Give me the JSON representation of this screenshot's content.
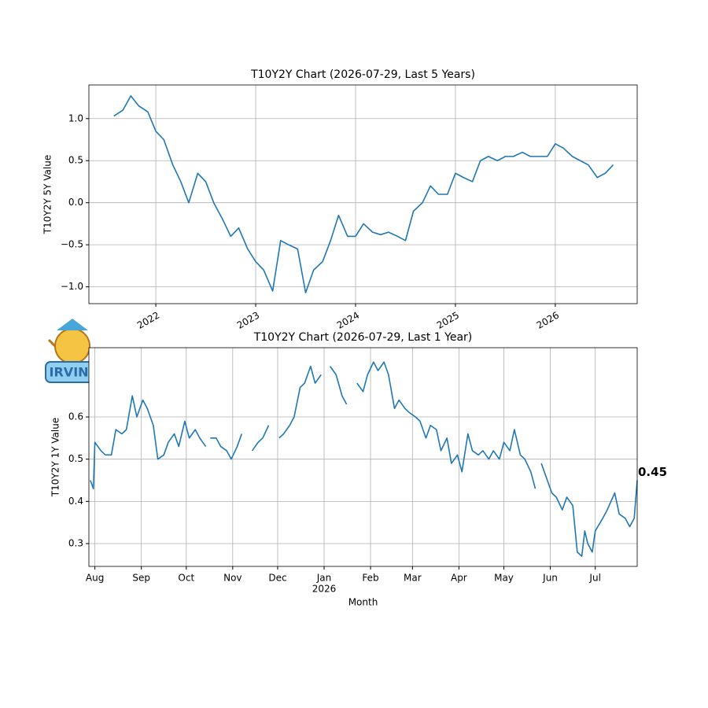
{
  "logo_text": "IRVINE",
  "chart_data": [
    {
      "type": "line",
      "title": "T10Y2Y Chart (2026-07-29, Last 5 Years)",
      "ylabel": "T10Y2Y 5Y Value",
      "color": "#1f77b4",
      "grid": true,
      "xlim": [
        2021.33,
        2026.82
      ],
      "xticks": [
        2022,
        2023,
        2024,
        2025,
        2026
      ],
      "ylim": [
        -1.2,
        1.4
      ],
      "yticks": [
        {
          "value": -1,
          "label": "−1.0"
        },
        {
          "value": -0.5,
          "label": "−0.5"
        },
        {
          "value": 0,
          "label": "0.0"
        },
        0.5,
        {
          "value": 1,
          "label": "1.0"
        }
      ],
      "x": [
        2021.58,
        2021.67,
        2021.75,
        2021.83,
        2021.92,
        2022.0,
        2022.08,
        2022.17,
        2022.25,
        2022.33,
        2022.42,
        2022.5,
        2022.58,
        2022.67,
        2022.75,
        2022.83,
        2022.92,
        2023.0,
        2023.08,
        2023.17,
        2023.25,
        2023.33,
        2023.42,
        2023.5,
        2023.58,
        2023.67,
        2023.75,
        2023.83,
        2023.92,
        2024.0,
        2024.08,
        2024.17,
        2024.25,
        2024.33,
        2024.42,
        2024.5,
        2024.58,
        2024.67,
        2024.75,
        2024.83,
        2024.92,
        2025.0,
        2025.08,
        2025.17,
        2025.25,
        2025.33,
        2025.42,
        2025.5,
        2025.58,
        2025.67,
        2025.75,
        2025.83,
        2025.92,
        2026.0,
        2026.08,
        2026.17,
        2026.25,
        2026.33,
        2026.42,
        2026.5,
        2026.58
      ],
      "values": [
        1.03,
        1.1,
        1.27,
        1.15,
        1.08,
        0.85,
        0.75,
        0.45,
        0.25,
        0.0,
        0.35,
        0.25,
        0.0,
        -0.2,
        -0.4,
        -0.3,
        -0.55,
        -0.7,
        -0.8,
        -1.05,
        -0.45,
        -0.5,
        -0.55,
        -1.07,
        -0.8,
        -0.7,
        -0.45,
        -0.15,
        -0.4,
        -0.4,
        -0.25,
        -0.35,
        -0.38,
        -0.35,
        -0.4,
        -0.45,
        -0.1,
        0.0,
        0.2,
        0.1,
        0.1,
        0.35,
        0.3,
        0.25,
        0.5,
        0.55,
        0.5,
        0.55,
        0.55,
        0.6,
        0.55,
        0.55,
        0.55,
        0.7,
        0.65,
        0.55,
        0.5,
        0.45,
        0.3,
        0.35,
        0.45
      ]
    },
    {
      "type": "line",
      "title": "T10Y2Y Chart (2026-07-29, Last 1 Year)",
      "ylabel": "T10Y2Y 1Y Value",
      "xlabel": "Month",
      "color": "#1f77b4",
      "grid": true,
      "annotation": "0.45",
      "xlim": [
        "2025-07-28",
        "2026-07-29"
      ],
      "xticks": [
        {
          "value": "2025-08-01",
          "label": "Aug"
        },
        {
          "value": "2025-09-01",
          "label": "Sep"
        },
        {
          "value": "2025-10-01",
          "label": "Oct"
        },
        {
          "value": "2025-11-01",
          "label": "Nov"
        },
        {
          "value": "2025-12-01",
          "label": "Dec"
        },
        {
          "value": "2026-01-01",
          "label": "Jan",
          "sublabel": "2026"
        },
        {
          "value": "2026-02-01",
          "label": "Feb"
        },
        {
          "value": "2026-03-01",
          "label": "Mar"
        },
        {
          "value": "2026-04-01",
          "label": "Apr"
        },
        {
          "value": "2026-05-01",
          "label": "May"
        },
        {
          "value": "2026-06-01",
          "label": "Jun"
        },
        {
          "value": "2026-07-01",
          "label": "Jul"
        }
      ],
      "ylim": [
        0.246,
        0.764
      ],
      "yticks": [
        0.3,
        0.4,
        0.5,
        0.6
      ],
      "x": [
        "2025-07-29",
        "2025-07-31",
        "2025-08-01",
        "2025-08-05",
        "2025-08-08",
        "2025-08-12",
        "2025-08-15",
        "2025-08-19",
        "2025-08-22",
        "2025-08-26",
        "2025-08-29",
        "2025-09-02",
        "2025-09-05",
        "2025-09-09",
        "2025-09-12",
        "2025-09-16",
        "2025-09-19",
        "2025-09-23",
        "2025-09-26",
        "2025-09-30",
        "2025-10-03",
        "2025-10-07",
        "2025-10-10",
        "2025-10-14",
        "2025-10-16",
        "2025-10-17",
        "2025-10-21",
        "2025-10-24",
        "2025-10-28",
        "2025-10-31",
        "2025-11-04",
        "2025-11-07",
        "2025-11-11",
        "2025-11-14",
        "2025-11-18",
        "2025-11-21",
        "2025-11-25",
        "2025-11-27",
        "2025-12-02",
        "2025-12-05",
        "2025-12-09",
        "2025-12-12",
        "2025-12-16",
        "2025-12-19",
        "2025-12-23",
        "2025-12-26",
        "2025-12-30",
        "2026-01-01",
        "2026-01-05",
        "2026-01-09",
        "2026-01-13",
        "2026-01-16",
        "2026-01-19",
        "2026-01-23",
        "2026-01-27",
        "2026-01-30",
        "2026-02-03",
        "2026-02-06",
        "2026-02-10",
        "2026-02-13",
        "2026-02-17",
        "2026-02-20",
        "2026-02-24",
        "2026-02-27",
        "2026-03-03",
        "2026-03-06",
        "2026-03-10",
        "2026-03-13",
        "2026-03-17",
        "2026-03-20",
        "2026-03-24",
        "2026-03-27",
        "2026-03-31",
        "2026-04-03",
        "2026-04-07",
        "2026-04-10",
        "2026-04-14",
        "2026-04-17",
        "2026-04-21",
        "2026-04-24",
        "2026-04-28",
        "2026-05-01",
        "2026-05-05",
        "2026-05-08",
        "2026-05-12",
        "2026-05-15",
        "2026-05-19",
        "2026-05-22",
        "2026-05-23",
        "2026-05-26",
        "2026-05-29",
        "2026-06-02",
        "2026-06-05",
        "2026-06-09",
        "2026-06-12",
        "2026-06-16",
        "2026-06-19",
        "2026-06-22",
        "2026-06-24",
        "2026-06-26",
        "2026-06-29",
        "2026-07-01",
        "2026-07-06",
        "2026-07-09",
        "2026-07-14",
        "2026-07-17",
        "2026-07-21",
        "2026-07-24",
        "2026-07-27",
        "2026-07-29"
      ],
      "values": [
        0.45,
        0.43,
        0.54,
        0.52,
        0.51,
        0.51,
        0.57,
        0.56,
        0.57,
        0.65,
        0.6,
        0.64,
        0.62,
        0.58,
        0.5,
        0.51,
        0.54,
        0.56,
        0.53,
        0.59,
        0.55,
        0.57,
        0.55,
        0.53,
        null,
        0.55,
        0.55,
        0.53,
        0.52,
        0.5,
        0.53,
        0.56,
        null,
        0.52,
        0.54,
        0.55,
        0.58,
        null,
        0.55,
        0.56,
        0.58,
        0.6,
        0.67,
        0.68,
        0.72,
        0.68,
        0.7,
        null,
        0.72,
        0.7,
        0.65,
        0.63,
        null,
        0.68,
        0.66,
        0.7,
        0.73,
        0.71,
        0.73,
        0.7,
        0.62,
        0.64,
        0.62,
        0.61,
        0.6,
        0.59,
        0.55,
        0.58,
        0.57,
        0.52,
        0.55,
        0.49,
        0.51,
        0.47,
        0.56,
        0.52,
        0.51,
        0.52,
        0.5,
        0.52,
        0.5,
        0.54,
        0.52,
        0.57,
        0.51,
        0.5,
        0.47,
        0.43,
        null,
        0.49,
        0.46,
        0.42,
        0.41,
        0.38,
        0.41,
        0.39,
        0.28,
        0.27,
        0.33,
        0.3,
        0.28,
        0.33,
        0.36,
        0.38,
        0.42,
        0.37,
        0.36,
        0.34,
        0.36,
        0.45
      ]
    }
  ]
}
